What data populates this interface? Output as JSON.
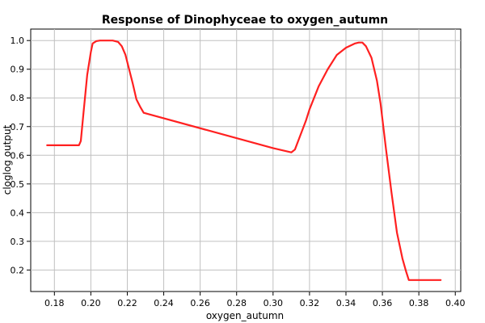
{
  "chart_data": {
    "type": "line",
    "title": "Response of Dinophyceae to oxygen_autumn",
    "xlabel": "oxygen_autumn",
    "ylabel": "cloglog output",
    "xlim": [
      0.167,
      0.403
    ],
    "ylim": [
      0.125,
      1.04
    ],
    "xticks": [
      0.18,
      0.2,
      0.22,
      0.24,
      0.26,
      0.28,
      0.3,
      0.32,
      0.34,
      0.36,
      0.38,
      0.4
    ],
    "xtick_labels": [
      "0.18",
      "0.20",
      "0.22",
      "0.24",
      "0.26",
      "0.28",
      "0.30",
      "0.32",
      "0.34",
      "0.36",
      "0.38",
      "0.40"
    ],
    "yticks": [
      0.2,
      0.3,
      0.4,
      0.5,
      0.6,
      0.7,
      0.8,
      0.9,
      1.0
    ],
    "ytick_labels": [
      "0.2",
      "0.3",
      "0.4",
      "0.5",
      "0.6",
      "0.7",
      "0.8",
      "0.9",
      "1.0"
    ],
    "grid": true,
    "colors": {
      "line": "#ff2020"
    },
    "series": [
      {
        "x": [
          0.176,
          0.1935,
          0.1945,
          0.196,
          0.198,
          0.2,
          0.201,
          0.203,
          0.205,
          0.208,
          0.212,
          0.215,
          0.217,
          0.219,
          0.221,
          0.223,
          0.225,
          0.227,
          0.229,
          0.3,
          0.31,
          0.312,
          0.315,
          0.318,
          0.32,
          0.325,
          0.33,
          0.335,
          0.34,
          0.345,
          0.347,
          0.349,
          0.351,
          0.354,
          0.357,
          0.359,
          0.362,
          0.365,
          0.368,
          0.371,
          0.373,
          0.3745,
          0.392
        ],
        "y": [
          0.635,
          0.635,
          0.65,
          0.75,
          0.88,
          0.96,
          0.99,
          0.998,
          1.0,
          1.0,
          1.0,
          0.995,
          0.98,
          0.95,
          0.9,
          0.85,
          0.795,
          0.77,
          0.748,
          0.625,
          0.61,
          0.62,
          0.67,
          0.72,
          0.76,
          0.84,
          0.9,
          0.95,
          0.975,
          0.99,
          0.993,
          0.993,
          0.98,
          0.94,
          0.86,
          0.78,
          0.62,
          0.47,
          0.33,
          0.24,
          0.195,
          0.165,
          0.165
        ]
      }
    ]
  }
}
